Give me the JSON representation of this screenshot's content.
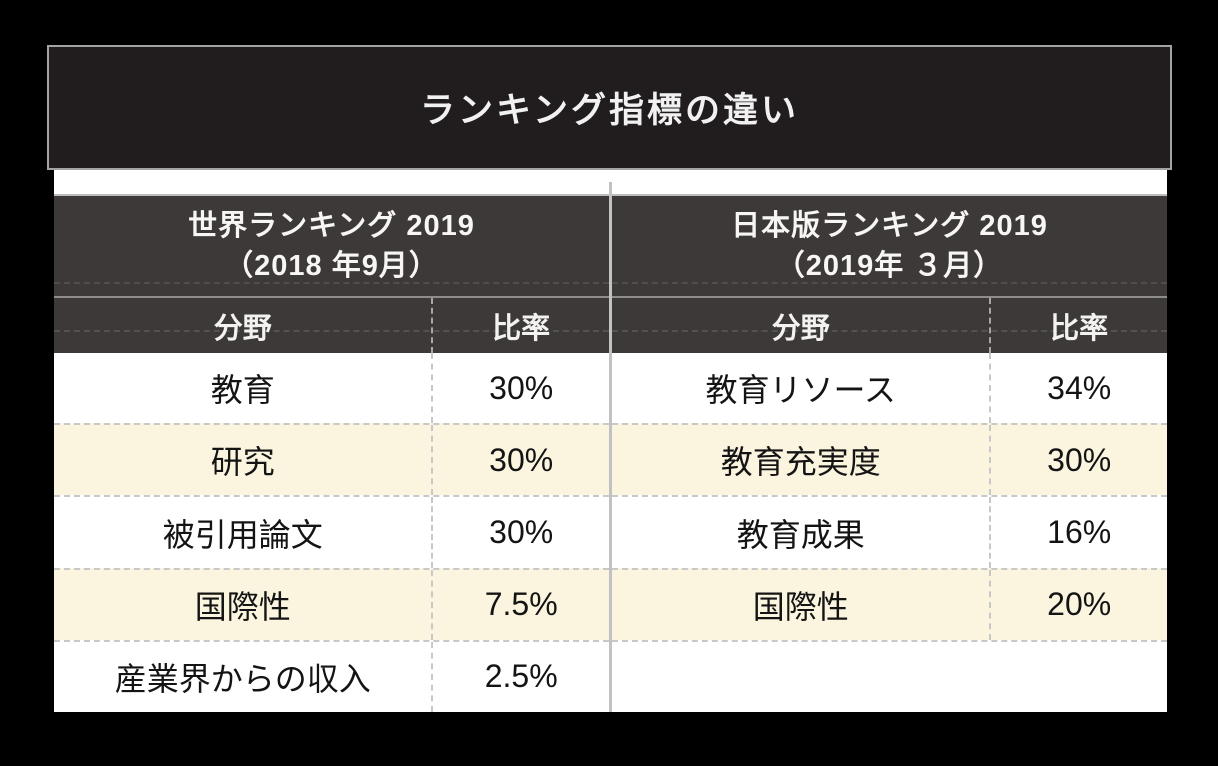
{
  "title": "ランキング指標の違い",
  "colors": {
    "background": "#000000",
    "title_bar_bg": "#211d1e",
    "title_bar_border": "#a3a3a3",
    "table_header_bg": "#3d3939",
    "row_alt_bg": "#fbf5e0",
    "row_bg": "#ffffff",
    "dashed_line": "#c8c8c8",
    "mid_divider": "#c2c2c2",
    "text_dark": "#141414",
    "text_light": "#f7f6f5"
  },
  "tables": [
    {
      "header_line1": "世界ランキング 2019",
      "header_line2": "（2018 年9月）",
      "columns": {
        "field": "分野",
        "ratio": "比率"
      },
      "rows": [
        {
          "field": "教育",
          "ratio": "30%"
        },
        {
          "field": "研究",
          "ratio": "30%"
        },
        {
          "field": "被引用論文",
          "ratio": "30%"
        },
        {
          "field": "国際性",
          "ratio": "7.5%"
        },
        {
          "field": "産業界からの収入",
          "ratio": "2.5%"
        }
      ]
    },
    {
      "header_line1": "日本版ランキング 2019",
      "header_line2": "（2019年 ３月）",
      "columns": {
        "field": "分野",
        "ratio": "比率"
      },
      "rows": [
        {
          "field": "教育リソース",
          "ratio": "34%"
        },
        {
          "field": "教育充実度",
          "ratio": "30%"
        },
        {
          "field": "教育成果",
          "ratio": "16%"
        },
        {
          "field": "国際性",
          "ratio": "20%"
        },
        {
          "field": "",
          "ratio": ""
        }
      ]
    }
  ],
  "chart_data": [
    {
      "type": "table",
      "title": "世界ランキング 2019（2018年9月）",
      "columns": [
        "分野",
        "比率"
      ],
      "rows": [
        [
          "教育",
          "30%"
        ],
        [
          "研究",
          "30%"
        ],
        [
          "被引用論文",
          "30%"
        ],
        [
          "国際性",
          "7.5%"
        ],
        [
          "産業界からの収入",
          "2.5%"
        ]
      ],
      "values_percent": [
        30,
        30,
        30,
        7.5,
        2.5
      ]
    },
    {
      "type": "table",
      "title": "日本版ランキング 2019（2019年３月）",
      "columns": [
        "分野",
        "比率"
      ],
      "rows": [
        [
          "教育リソース",
          "34%"
        ],
        [
          "教育充実度",
          "30%"
        ],
        [
          "教育成果",
          "16%"
        ],
        [
          "国際性",
          "20%"
        ]
      ],
      "values_percent": [
        34,
        30,
        16,
        20
      ]
    }
  ]
}
